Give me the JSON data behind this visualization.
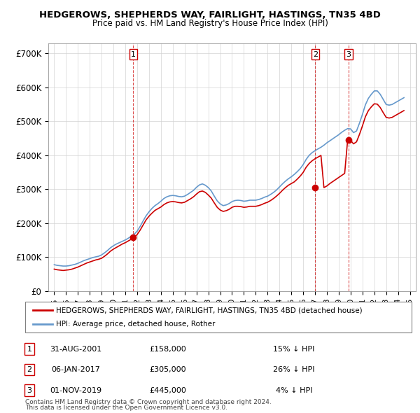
{
  "title": "HEDGEROWS, SHEPHERDS WAY, FAIRLIGHT, HASTINGS, TN35 4BD",
  "subtitle": "Price paid vs. HM Land Registry's House Price Index (HPI)",
  "ylabel_ticks": [
    "£0",
    "£100K",
    "£200K",
    "£300K",
    "£400K",
    "£500K",
    "£600K",
    "£700K"
  ],
  "ytick_values": [
    0,
    100000,
    200000,
    300000,
    400000,
    500000,
    600000,
    700000
  ],
  "ylim": [
    0,
    730000
  ],
  "xlim_start": 1994.5,
  "xlim_end": 2025.5,
  "legend_line1": "HEDGEROWS, SHEPHERDS WAY, FAIRLIGHT, HASTINGS, TN35 4BD (detached house)",
  "legend_line2": "HPI: Average price, detached house, Rother",
  "red_color": "#cc0000",
  "blue_color": "#6699cc",
  "sale_dates": [
    "31-AUG-2001",
    "06-JAN-2017",
    "01-NOV-2019"
  ],
  "sale_prices": [
    158000,
    305000,
    445000
  ],
  "sale_years": [
    2001.66,
    2017.02,
    2019.84
  ],
  "sale_labels": [
    "1",
    "2",
    "3"
  ],
  "sale_hpi_pct": [
    "15% ↓ HPI",
    "26% ↓ HPI",
    "4% ↓ HPI"
  ],
  "footnote1": "Contains HM Land Registry data © Crown copyright and database right 2024.",
  "footnote2": "This data is licensed under the Open Government Licence v3.0.",
  "hpi_data": {
    "years": [
      1995.0,
      1995.25,
      1995.5,
      1995.75,
      1996.0,
      1996.25,
      1996.5,
      1996.75,
      1997.0,
      1997.25,
      1997.5,
      1997.75,
      1998.0,
      1998.25,
      1998.5,
      1998.75,
      1999.0,
      1999.25,
      1999.5,
      1999.75,
      2000.0,
      2000.25,
      2000.5,
      2000.75,
      2001.0,
      2001.25,
      2001.5,
      2001.75,
      2002.0,
      2002.25,
      2002.5,
      2002.75,
      2003.0,
      2003.25,
      2003.5,
      2003.75,
      2004.0,
      2004.25,
      2004.5,
      2004.75,
      2005.0,
      2005.25,
      2005.5,
      2005.75,
      2006.0,
      2006.25,
      2006.5,
      2006.75,
      2007.0,
      2007.25,
      2007.5,
      2007.75,
      2008.0,
      2008.25,
      2008.5,
      2008.75,
      2009.0,
      2009.25,
      2009.5,
      2009.75,
      2010.0,
      2010.25,
      2010.5,
      2010.75,
      2011.0,
      2011.25,
      2011.5,
      2011.75,
      2012.0,
      2012.25,
      2012.5,
      2012.75,
      2013.0,
      2013.25,
      2013.5,
      2013.75,
      2014.0,
      2014.25,
      2014.5,
      2014.75,
      2015.0,
      2015.25,
      2015.5,
      2015.75,
      2016.0,
      2016.25,
      2016.5,
      2016.75,
      2017.0,
      2017.25,
      2017.5,
      2017.75,
      2018.0,
      2018.25,
      2018.5,
      2018.75,
      2019.0,
      2019.25,
      2019.5,
      2019.75,
      2020.0,
      2020.25,
      2020.5,
      2020.75,
      2021.0,
      2021.25,
      2021.5,
      2021.75,
      2022.0,
      2022.25,
      2022.5,
      2022.75,
      2023.0,
      2023.25,
      2023.5,
      2023.75,
      2024.0,
      2024.25,
      2024.5
    ],
    "values": [
      78000,
      76000,
      75000,
      74000,
      74000,
      75000,
      77000,
      79000,
      82000,
      86000,
      90000,
      93000,
      96000,
      99000,
      101000,
      103000,
      107000,
      113000,
      120000,
      128000,
      134000,
      139000,
      143000,
      147000,
      151000,
      156000,
      162000,
      168000,
      177000,
      191000,
      207000,
      222000,
      234000,
      244000,
      252000,
      258000,
      265000,
      273000,
      278000,
      281000,
      282000,
      281000,
      279000,
      278000,
      280000,
      285000,
      291000,
      297000,
      306000,
      313000,
      316000,
      312000,
      305000,
      295000,
      280000,
      266000,
      257000,
      252000,
      254000,
      258000,
      264000,
      267000,
      268000,
      267000,
      265000,
      266000,
      268000,
      268000,
      268000,
      270000,
      273000,
      277000,
      280000,
      285000,
      291000,
      298000,
      307000,
      316000,
      324000,
      331000,
      337000,
      344000,
      352000,
      361000,
      373000,
      388000,
      400000,
      408000,
      414000,
      419000,
      424000,
      430000,
      437000,
      443000,
      449000,
      455000,
      461000,
      468000,
      474000,
      479000,
      478000,
      467000,
      472000,
      495000,
      521000,
      549000,
      568000,
      580000,
      590000,
      590000,
      580000,
      565000,
      550000,
      548000,
      550000,
      555000,
      560000,
      565000,
      570000
    ]
  },
  "property_data": {
    "years": [
      1995.0,
      1995.25,
      1995.5,
      1995.75,
      1996.0,
      1996.25,
      1996.5,
      1996.75,
      1997.0,
      1997.25,
      1997.5,
      1997.75,
      1998.0,
      1998.25,
      1998.5,
      1998.75,
      1999.0,
      1999.25,
      1999.5,
      1999.75,
      2000.0,
      2000.25,
      2000.5,
      2000.75,
      2001.0,
      2001.25,
      2001.5,
      2001.75,
      2002.0,
      2002.25,
      2002.5,
      2002.75,
      2003.0,
      2003.25,
      2003.5,
      2003.75,
      2004.0,
      2004.25,
      2004.5,
      2004.75,
      2005.0,
      2005.25,
      2005.5,
      2005.75,
      2006.0,
      2006.25,
      2006.5,
      2006.75,
      2007.0,
      2007.25,
      2007.5,
      2007.75,
      2008.0,
      2008.25,
      2008.5,
      2008.75,
      2009.0,
      2009.25,
      2009.5,
      2009.75,
      2010.0,
      2010.25,
      2010.5,
      2010.75,
      2011.0,
      2011.25,
      2011.5,
      2011.75,
      2012.0,
      2012.25,
      2012.5,
      2012.75,
      2013.0,
      2013.25,
      2013.5,
      2013.75,
      2014.0,
      2014.25,
      2014.5,
      2014.75,
      2015.0,
      2015.25,
      2015.5,
      2015.75,
      2016.0,
      2016.25,
      2016.5,
      2016.75,
      2017.0,
      2017.25,
      2017.5,
      2017.75,
      2018.0,
      2018.25,
      2018.5,
      2018.75,
      2019.0,
      2019.25,
      2019.5,
      2019.75,
      2020.0,
      2020.25,
      2020.5,
      2020.75,
      2021.0,
      2021.25,
      2021.5,
      2021.75,
      2022.0,
      2022.25,
      2022.5,
      2022.75,
      2023.0,
      2023.25,
      2023.5,
      2023.75,
      2024.0,
      2024.25,
      2024.5
    ],
    "values": [
      65000,
      63000,
      62000,
      61000,
      62000,
      63000,
      65000,
      68000,
      71000,
      75000,
      79000,
      83000,
      86000,
      89000,
      92000,
      94000,
      97000,
      103000,
      110000,
      118000,
      124000,
      129000,
      134000,
      139000,
      143000,
      148000,
      153000,
      158000,
      167000,
      180000,
      195000,
      210000,
      221000,
      230000,
      238000,
      243000,
      248000,
      255000,
      260000,
      263000,
      264000,
      263000,
      261000,
      260000,
      262000,
      267000,
      272000,
      278000,
      286000,
      293000,
      295000,
      291000,
      283000,
      274000,
      260000,
      247000,
      239000,
      235000,
      237000,
      241000,
      247000,
      250000,
      250000,
      249000,
      247000,
      248000,
      250000,
      250000,
      250000,
      252000,
      255000,
      259000,
      262000,
      267000,
      273000,
      280000,
      288000,
      297000,
      305000,
      312000,
      317000,
      322000,
      330000,
      339000,
      350000,
      365000,
      376000,
      384000,
      390000,
      395000,
      400000,
      305000,
      310000,
      317000,
      323000,
      329000,
      335000,
      341000,
      347000,
      445000,
      444000,
      434000,
      440000,
      462000,
      487000,
      514000,
      532000,
      543000,
      552000,
      551000,
      541000,
      526000,
      512000,
      510000,
      512000,
      517000,
      522000,
      527000,
      532000
    ]
  }
}
